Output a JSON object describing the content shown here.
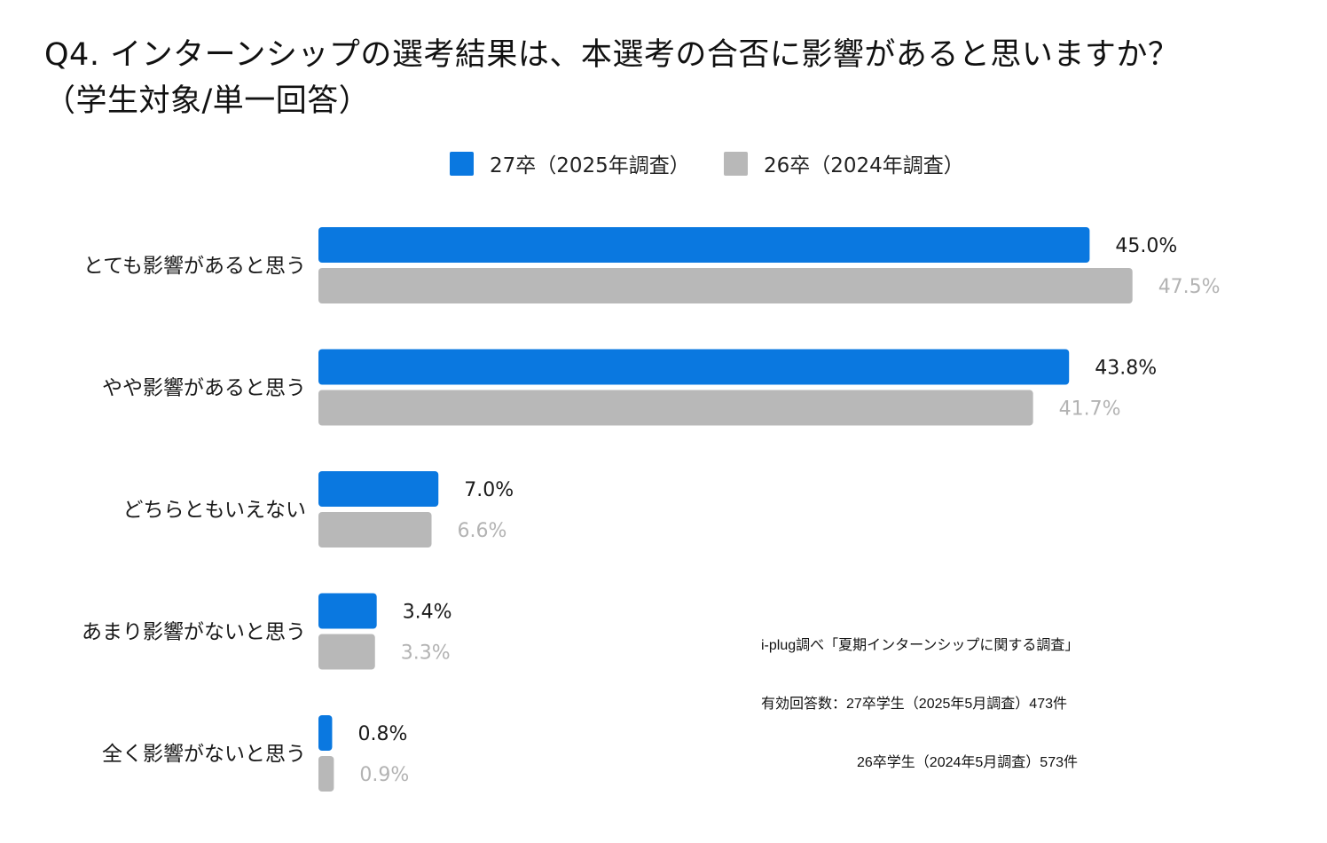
{
  "chart_data": {
    "type": "bar",
    "orientation": "horizontal",
    "title_line1": "Q4. インターンシップの選考結果は、本選考の合否に影響があると思いますか？",
    "title_line2": "（学生対象/単一回答）",
    "categories": [
      "とても影響があると思う",
      "やや影響があると思う",
      "どちらともいえない",
      "あまり影響がないと思う",
      "全く影響がないと思う"
    ],
    "series": [
      {
        "name": "27卒（2025年調査）",
        "color": "#0a78e0",
        "label_color": "#1a1a1a",
        "values": [
          45.0,
          43.8,
          7.0,
          3.4,
          0.8
        ],
        "labels": [
          "45.0%",
          "43.8%",
          "7.0%",
          "3.4%",
          "0.8%"
        ]
      },
      {
        "name": "26卒（2024年調査）",
        "color": "#b8b8b8",
        "label_color": "#b3b3b3",
        "values": [
          47.5,
          41.7,
          6.6,
          3.3,
          0.9
        ],
        "labels": [
          "47.5%",
          "41.7%",
          "6.6%",
          "3.3%",
          "0.9%"
        ]
      }
    ],
    "unit": "%",
    "xlim": [
      0,
      50
    ],
    "grid": false,
    "axes_visible": false,
    "legend_position": "top-center",
    "xlabel": "",
    "ylabel": ""
  },
  "source_note": {
    "line1": "i-plug調べ「夏期インターンシップに関する調査」",
    "line2": "有効回答数：27卒学生（2025年5月調査）473件",
    "line3": "26卒学生（2024年5月調査）573件"
  }
}
